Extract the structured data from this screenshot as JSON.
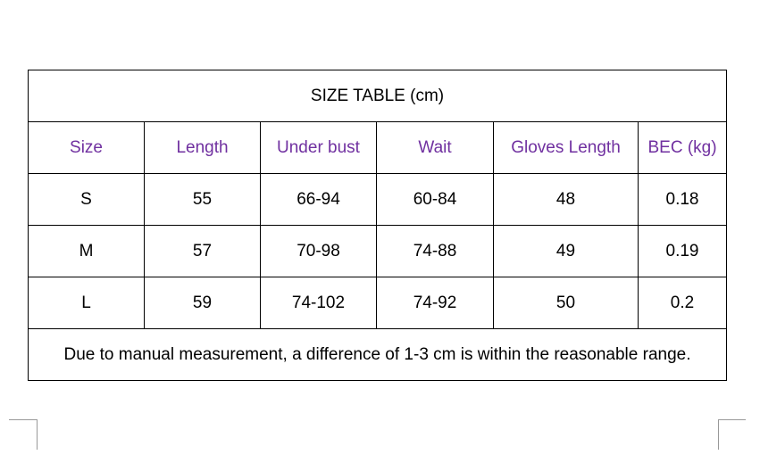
{
  "table": {
    "title": "SIZE TABLE (cm)",
    "headers": [
      "Size",
      "Length",
      "Under bust",
      "Wait",
      "Gloves Length",
      "BEC (kg)"
    ],
    "rows": [
      [
        "S",
        "55",
        "66-94",
        "60-84",
        "48",
        "0.18"
      ],
      [
        "M",
        "57",
        "70-98",
        "74-88",
        "49",
        "0.19"
      ],
      [
        "L",
        "59",
        "74-102",
        "74-92",
        "50",
        "0.2"
      ]
    ],
    "note": "Due to manual measurement, a difference of 1-3 cm is within the reasonable range."
  }
}
